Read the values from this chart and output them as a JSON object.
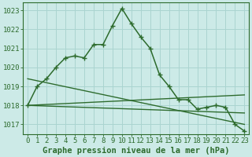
{
  "title": "Graphe pression niveau de la mer (hPa)",
  "bg_color": "#cceae7",
  "grid_color": "#aad4d0",
  "line_color": "#2d6b2d",
  "x_min": 0,
  "x_max": 23,
  "y_min": 1016.5,
  "y_max": 1023.4,
  "main_series": [
    1018.0,
    1019.0,
    1019.4,
    1020.0,
    1020.5,
    1020.6,
    1020.5,
    1021.2,
    1021.2,
    1022.2,
    1023.1,
    1022.3,
    1021.6,
    1021.0,
    1019.6,
    1019.0,
    1018.3,
    1018.3,
    1017.8,
    1017.9,
    1018.0,
    1017.9,
    1017.0,
    1016.65
  ],
  "trend1_x": [
    0,
    23
  ],
  "trend1_y": [
    1018.0,
    1018.55
  ],
  "trend2_x": [
    0,
    23
  ],
  "trend2_y": [
    1018.0,
    1017.6
  ],
  "trend3_x": [
    0,
    23
  ],
  "trend3_y": [
    1019.4,
    1017.0
  ],
  "yticks": [
    1017,
    1018,
    1019,
    1020,
    1021,
    1022,
    1023
  ],
  "xticks": [
    0,
    1,
    2,
    3,
    4,
    5,
    6,
    7,
    8,
    9,
    10,
    11,
    12,
    13,
    14,
    15,
    16,
    17,
    18,
    19,
    20,
    21,
    22,
    23
  ],
  "tick_fontsize": 6.5,
  "label_fontsize": 7.5,
  "line_width": 1.1,
  "marker_size": 4
}
